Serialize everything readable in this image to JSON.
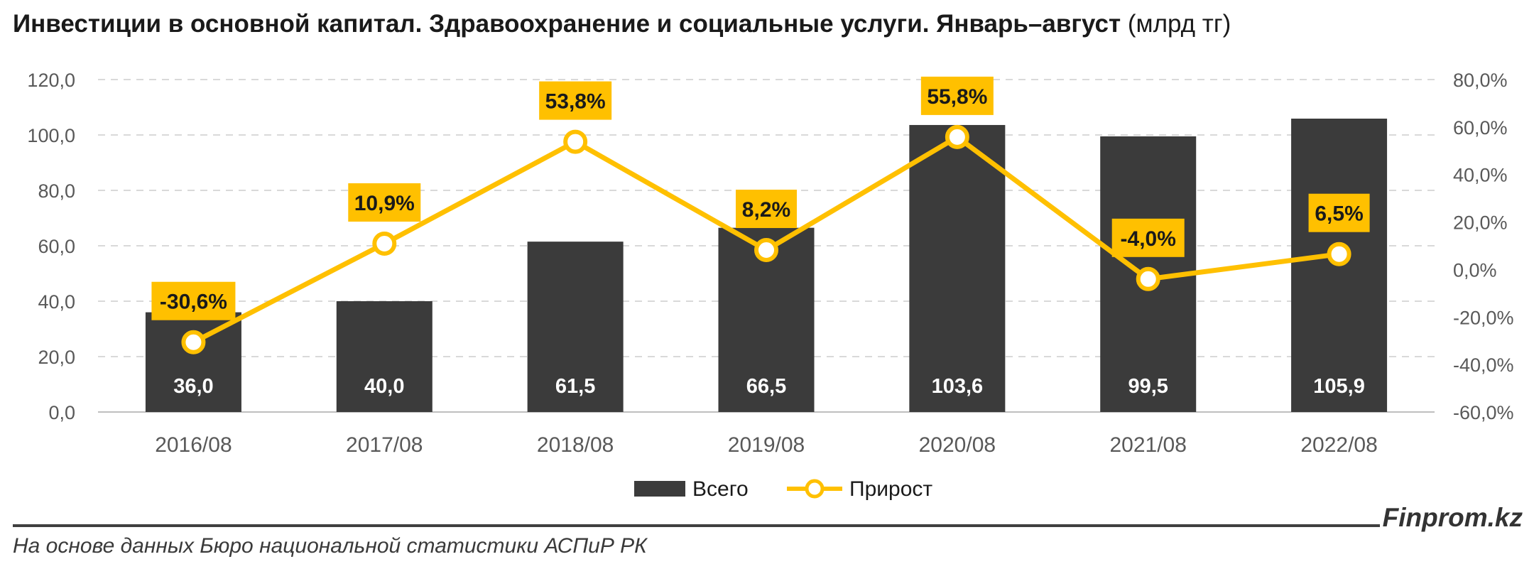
{
  "title_main": "Инвестиции в основной капитал. Здравоохранение и социальные услуги. Январь–август",
  "title_unit": "(млрд тг)",
  "brand": "Finprom.kz",
  "source": "На основе данных Бюро национальной статистики АСПиР РК",
  "colors": {
    "bar": "#3b3b3b",
    "line": "#ffc000",
    "label_bg": "#ffc000",
    "grid": "#d9d9d9",
    "axis_text": "#595959"
  },
  "chart_data": {
    "type": "bar",
    "categories": [
      "2016/08",
      "2017/08",
      "2018/08",
      "2019/08",
      "2020/08",
      "2021/08",
      "2022/08"
    ],
    "series": [
      {
        "name": "Всего",
        "type": "bar",
        "axis": "left",
        "values": [
          36.0,
          40.0,
          61.5,
          66.5,
          103.6,
          99.5,
          105.9
        ],
        "labels": [
          "36,0",
          "40,0",
          "61,5",
          "66,5",
          "103,6",
          "99,5",
          "105,9"
        ]
      },
      {
        "name": "Прирост",
        "type": "line",
        "axis": "right",
        "values": [
          -30.6,
          10.9,
          53.8,
          8.2,
          55.8,
          -4.0,
          6.5
        ],
        "labels": [
          "-30,6%",
          "10,9%",
          "53,8%",
          "8,2%",
          "55,8%",
          "-4,0%",
          "6,5%"
        ]
      }
    ],
    "ylim_left": [
      0,
      120
    ],
    "ylim_right": [
      -60,
      80
    ],
    "yticks_left": [
      "0,0",
      "20,0",
      "40,0",
      "60,0",
      "80,0",
      "100,0",
      "120,0"
    ],
    "yticks_right": [
      "-60,0%",
      "-40,0%",
      "-20,0%",
      "0,0%",
      "20,0%",
      "40,0%",
      "60,0%",
      "80,0%"
    ],
    "grid": true,
    "legend_position": "bottom"
  }
}
